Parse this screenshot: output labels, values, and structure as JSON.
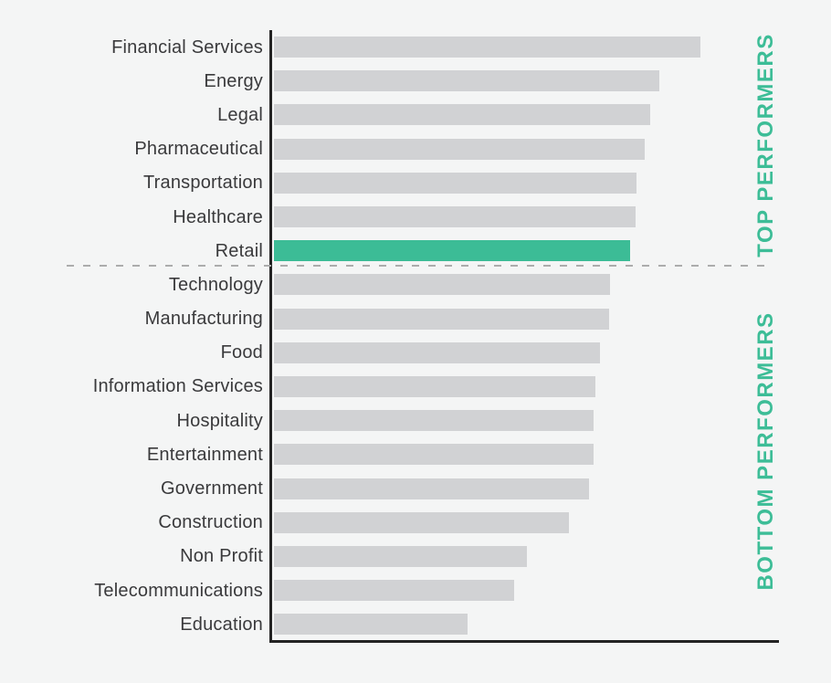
{
  "chart_data": {
    "type": "bar",
    "orientation": "horizontal",
    "title": "",
    "xlabel": "",
    "ylabel": "",
    "axis_value_labels_visible": false,
    "grid": false,
    "categories": [
      "Financial Services",
      "Energy",
      "Legal",
      "Pharmaceutical",
      "Transportation",
      "Healthcare",
      "Retail",
      "Technology",
      "Manufacturing",
      "Food",
      "Information Services",
      "Hospitality",
      "Entertainment",
      "Government",
      "Construction",
      "Non Profit",
      "Telecommunications",
      "Education"
    ],
    "values": [
      467,
      422,
      412,
      406,
      397,
      396,
      390,
      368,
      367,
      357,
      352,
      350,
      350,
      345,
      323,
      277,
      263,
      212
    ],
    "values_relative_pct": [
      100,
      90,
      88,
      87,
      85,
      85,
      84,
      79,
      79,
      76,
      75,
      75,
      75,
      74,
      69,
      59,
      56,
      45
    ],
    "value_note": "axis is unlabeled; values are bar lengths in pixels (longest = Financial Services)",
    "highlight_index": 6,
    "highlight_category": "Retail",
    "divider_after_index": 6,
    "group_labels": {
      "top": "TOP PERFORMERS",
      "bottom": "BOTTOM PERFORMERS"
    },
    "colors": {
      "background": "#f4f5f5",
      "bar_default": "#d1d2d4",
      "bar_highlight": "#3cbc96",
      "group_label_text": "#3dbd97",
      "category_text": "#3a3a3c",
      "axis_line": "#232323",
      "divider_dash": "#acacac"
    }
  }
}
